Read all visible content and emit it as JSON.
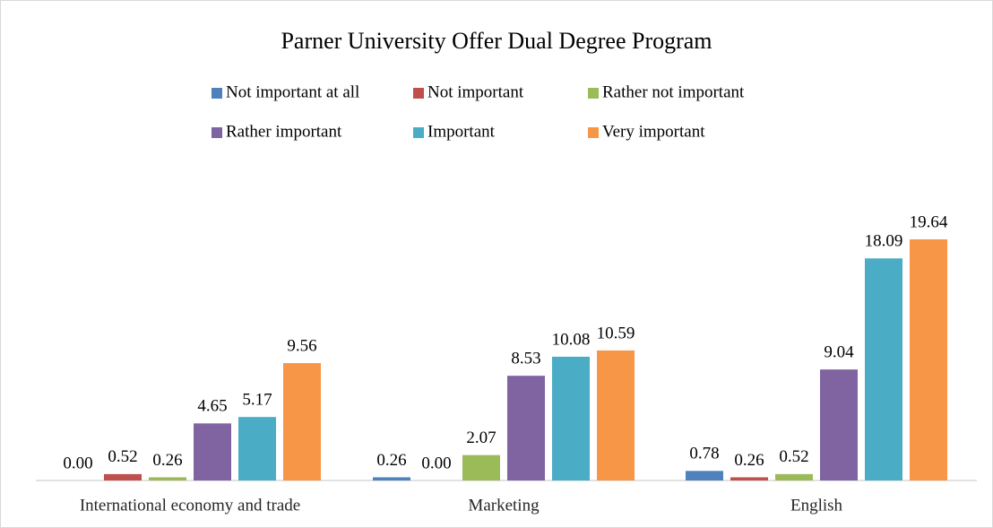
{
  "chart_data": {
    "type": "bar",
    "title": "Parner University Offer Dual Degree Program",
    "categories": [
      "International economy and trade",
      "Marketing",
      "English"
    ],
    "series": [
      {
        "name": "Not important at all",
        "color": "#4f81bd",
        "values": [
          0,
          0.26,
          0.78
        ],
        "value_labels": [
          "0.00",
          "0.26",
          "0.78"
        ]
      },
      {
        "name": "Not important",
        "color": "#c0504d",
        "values": [
          0.52,
          0,
          0.26
        ],
        "value_labels": [
          "0.52",
          "0.00",
          "0.26"
        ]
      },
      {
        "name": "Rather not important",
        "color": "#9bbb59",
        "values": [
          0.26,
          2.07,
          0.52
        ],
        "value_labels": [
          "0.26",
          "2.07",
          "0.52"
        ]
      },
      {
        "name": "Rather important",
        "color": "#8064a2",
        "values": [
          4.65,
          8.53,
          9.04
        ],
        "value_labels": [
          "4.65",
          "8.53",
          "9.04"
        ]
      },
      {
        "name": "Important",
        "color": "#4bacc6",
        "values": [
          5.17,
          10.08,
          18.09
        ],
        "value_labels": [
          "5.17",
          "10.08",
          "18.09"
        ]
      },
      {
        "name": "Very important",
        "color": "#f79646",
        "values": [
          9.56,
          10.59,
          19.64
        ],
        "value_labels": [
          "9.56",
          "10.59",
          "19.64"
        ]
      }
    ],
    "legend": "top"
  }
}
